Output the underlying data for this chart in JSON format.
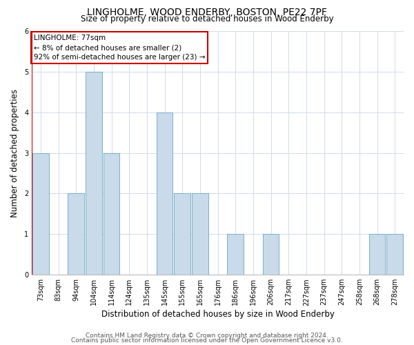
{
  "title": "LINGHOLME, WOOD ENDERBY, BOSTON, PE22 7PF",
  "subtitle": "Size of property relative to detached houses in Wood Enderby",
  "xlabel": "Distribution of detached houses by size in Wood Enderby",
  "ylabel": "Number of detached properties",
  "bin_labels": [
    "73sqm",
    "83sqm",
    "94sqm",
    "104sqm",
    "114sqm",
    "124sqm",
    "135sqm",
    "145sqm",
    "155sqm",
    "165sqm",
    "176sqm",
    "186sqm",
    "196sqm",
    "206sqm",
    "217sqm",
    "227sqm",
    "237sqm",
    "247sqm",
    "258sqm",
    "268sqm",
    "278sqm"
  ],
  "bar_values": [
    3,
    0,
    2,
    5,
    3,
    0,
    0,
    4,
    2,
    2,
    0,
    1,
    0,
    1,
    0,
    0,
    0,
    0,
    0,
    1,
    1
  ],
  "bar_color": "#c9daea",
  "bar_edge_color": "#7aafc8",
  "property_line_color": "#cc0000",
  "annotation_title": "LINGHOLME: 77sqm",
  "annotation_line1": "← 8% of detached houses are smaller (2)",
  "annotation_line2": "92% of semi-detached houses are larger (23) →",
  "annotation_box_color": "#ffffff",
  "annotation_box_edge": "#cc0000",
  "ylim": [
    0,
    6
  ],
  "yticks": [
    0,
    1,
    2,
    3,
    4,
    5,
    6
  ],
  "footer1": "Contains HM Land Registry data © Crown copyright and database right 2024.",
  "footer2": "Contains public sector information licensed under the Open Government Licence v3.0.",
  "bg_color": "#ffffff",
  "grid_color": "#d0dce8",
  "title_fontsize": 10,
  "subtitle_fontsize": 8.5,
  "axis_label_fontsize": 8.5,
  "tick_fontsize": 7,
  "annotation_fontsize": 7.5,
  "footer_fontsize": 6.5
}
